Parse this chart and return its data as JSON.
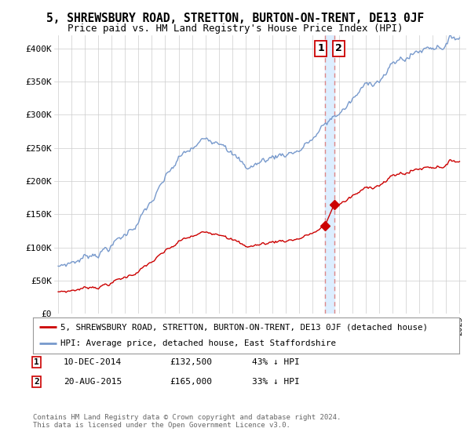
{
  "title": "5, SHREWSBURY ROAD, STRETTON, BURTON-ON-TRENT, DE13 0JF",
  "subtitle": "Price paid vs. HM Land Registry's House Price Index (HPI)",
  "ylim": [
    0,
    420000
  ],
  "yticks": [
    0,
    50000,
    100000,
    150000,
    200000,
    250000,
    300000,
    350000,
    400000
  ],
  "ytick_labels": [
    "£0",
    "£50K",
    "£100K",
    "£150K",
    "£200K",
    "£250K",
    "£300K",
    "£350K",
    "£400K"
  ],
  "sale1_date": 2014.94,
  "sale1_price": 132500,
  "sale2_date": 2015.64,
  "sale2_price": 165000,
  "vline_color": "#dd8888",
  "sale_color": "#cc0000",
  "hpi_color": "#7799cc",
  "shade_color": "#ddeeff",
  "legend1": "5, SHREWSBURY ROAD, STRETTON, BURTON-ON-TRENT, DE13 0JF (detached house)",
  "legend2": "HPI: Average price, detached house, East Staffordshire",
  "footer": "Contains HM Land Registry data © Crown copyright and database right 2024.\nThis data is licensed under the Open Government Licence v3.0.",
  "background_color": "#ffffff",
  "grid_color": "#cccccc",
  "title_fontsize": 10.5,
  "subtitle_fontsize": 9
}
